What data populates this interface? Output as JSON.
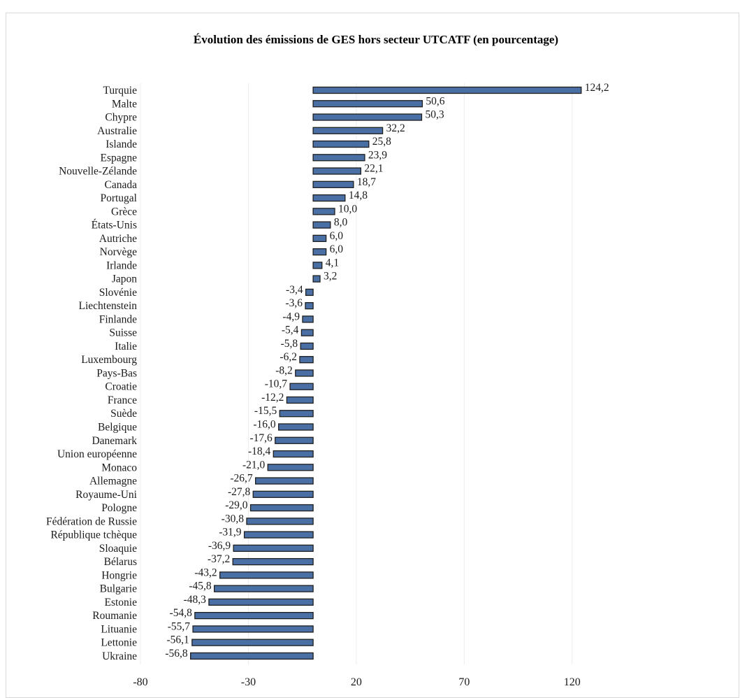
{
  "chart_data": {
    "type": "bar",
    "orientation": "horizontal",
    "title": "Évolution des émissions de GES hors secteur UTCATF (en pourcentage)",
    "xlabel": "",
    "ylabel": "",
    "xlim": [
      -80,
      145
    ],
    "xticks": [
      -80,
      -30,
      20,
      70,
      120
    ],
    "grid": true,
    "bar_color": "#4a6fa5",
    "bar_edge_color": "#1f1f1f",
    "categories": [
      "Turquie",
      "Malte",
      "Chypre",
      "Australie",
      "Islande",
      "Espagne",
      "Nouvelle-Zélande",
      "Canada",
      "Portugal",
      "Grèce",
      "États-Unis",
      "Autriche",
      "Norvège",
      "Irlande",
      "Japon",
      "Slovénie",
      "Liechtenstein",
      "Finlande",
      "Suisse",
      "Italie",
      "Luxembourg",
      "Pays-Bas",
      "Croatie",
      "France",
      "Suède",
      "Belgique",
      "Danemark",
      "Union européenne",
      "Monaco",
      "Allemagne",
      "Royaume-Uni",
      "Pologne",
      "Fédération de Russie",
      "République tchèque",
      "Sloaquie",
      "Bélarus",
      "Hongrie",
      "Bulgarie",
      "Estonie",
      "Roumanie",
      "Lituanie",
      "Lettonie",
      "Ukraine"
    ],
    "values": [
      124.2,
      50.6,
      50.3,
      32.2,
      25.8,
      23.9,
      22.1,
      18.7,
      14.8,
      10.0,
      8.0,
      6.0,
      6.0,
      4.1,
      3.2,
      -3.4,
      -3.6,
      -4.9,
      -5.4,
      -5.8,
      -6.2,
      -8.2,
      -10.7,
      -12.2,
      -15.5,
      -16.0,
      -17.6,
      -18.4,
      -21.0,
      -26.7,
      -27.8,
      -29.0,
      -30.8,
      -31.9,
      -36.9,
      -37.2,
      -43.2,
      -45.8,
      -48.3,
      -54.8,
      -55.7,
      -56.1,
      -56.8
    ],
    "value_labels": [
      "124,2",
      "50,6",
      "50,3",
      "32,2",
      "25,8",
      "23,9",
      "22,1",
      "18,7",
      "14,8",
      "10,0",
      "8,0",
      "6,0",
      "6,0",
      "4,1",
      "3,2",
      "-3,4",
      "-3,6",
      "-4,9",
      "-5,4",
      "-5,8",
      "-6,2",
      "-8,2",
      "-10,7",
      "-12,2",
      "-15,5",
      "-16,0",
      "-17,6",
      "-18,4",
      "-21,0",
      "-26,7",
      "-27,8",
      "-29,0",
      "-30,8",
      "-31,9",
      "-36,9",
      "-37,2",
      "-43,2",
      "-45,8",
      "-48,3",
      "-54,8",
      "-55,7",
      "-56,1",
      "-56,8"
    ]
  }
}
